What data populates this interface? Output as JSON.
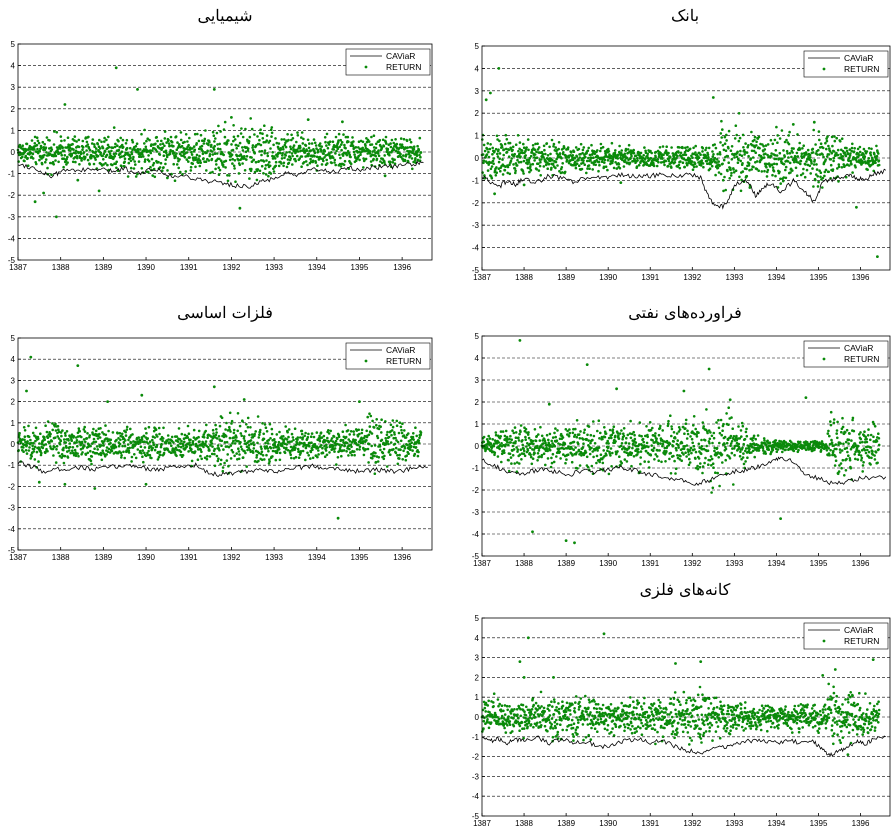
{
  "colors": {
    "return": "#0a8a0a",
    "caviar": "#000000",
    "grid": "#000000",
    "frame": "#000000"
  },
  "legend": {
    "line_label": "CAViaR",
    "points_label": "RETURN"
  },
  "chart_data": [
    {
      "id": "chem",
      "type": "scatter",
      "title": "شیمیایی",
      "x_ticks": [
        "1387",
        "1388",
        "1389",
        "1390",
        "1391",
        "1392",
        "1393",
        "1394",
        "1395",
        "1396"
      ],
      "xlim": [
        1387,
        1396.7
      ],
      "y_ticks": [
        "5",
        "4",
        "3",
        "2",
        "1",
        "0",
        "-1",
        "-2",
        "-3",
        "-4",
        "-5"
      ],
      "ylim": [
        -5,
        5
      ],
      "grid": "dashed horizontal",
      "legend_position": "top-right",
      "series": [
        {
          "name": "CAViaR",
          "type": "line",
          "x": [
            1387.0,
            1387.3,
            1387.6,
            1387.8,
            1388.0,
            1388.3,
            1388.6,
            1388.9,
            1389.2,
            1389.5,
            1389.8,
            1390.0,
            1390.3,
            1390.6,
            1390.9,
            1391.2,
            1391.5,
            1391.8,
            1392.1,
            1392.4,
            1392.7,
            1393.0,
            1393.3,
            1393.6,
            1393.9,
            1394.2,
            1394.5,
            1394.8,
            1395.1,
            1395.4,
            1395.7,
            1396.0,
            1396.3,
            1396.5
          ],
          "y": [
            -0.55,
            -0.7,
            -0.95,
            -1.15,
            -0.9,
            -0.8,
            -0.85,
            -0.8,
            -0.9,
            -0.75,
            -1.0,
            -0.85,
            -0.8,
            -1.15,
            -1.1,
            -1.25,
            -1.35,
            -1.45,
            -1.55,
            -1.6,
            -1.4,
            -1.2,
            -1.0,
            -1.1,
            -0.8,
            -0.85,
            -0.9,
            -0.75,
            -0.85,
            -0.7,
            -0.7,
            -0.6,
            -0.55,
            -0.5
          ]
        },
        {
          "name": "RETURN",
          "type": "scatter",
          "volatility": [
            0.35,
            0.4,
            0.5,
            0.45,
            0.45,
            0.5,
            0.55,
            0.5,
            0.55,
            0.6,
            0.65,
            0.65,
            0.6,
            0.55,
            0.7,
            0.8,
            0.8,
            0.85,
            0.8,
            0.55,
            0.5,
            0.45,
            0.45,
            0.5,
            0.5,
            0.45,
            0.45,
            0.45,
            0.4,
            0.4
          ],
          "outliers": [
            [
              1387.4,
              -2.3
            ],
            [
              1387.6,
              -1.9
            ],
            [
              1387.9,
              -3.0
            ],
            [
              1388.1,
              2.2
            ],
            [
              1388.4,
              -1.3
            ],
            [
              1388.9,
              -1.8
            ],
            [
              1389.3,
              3.9
            ],
            [
              1389.8,
              2.9
            ],
            [
              1390.5,
              -1.2
            ],
            [
              1391.6,
              2.9
            ],
            [
              1392.2,
              -2.6
            ],
            [
              1392.0,
              1.6
            ],
            [
              1393.8,
              1.5
            ],
            [
              1394.6,
              1.4
            ],
            [
              1395.6,
              -1.1
            ]
          ]
        }
      ]
    },
    {
      "id": "bank",
      "type": "scatter",
      "title": "بانک",
      "x_ticks": [
        "1387",
        "1388",
        "1389",
        "1390",
        "1391",
        "1392",
        "1393",
        "1394",
        "1395",
        "1396"
      ],
      "xlim": [
        1387,
        1396.7
      ],
      "y_ticks": [
        "5",
        "4",
        "3",
        "2",
        "1",
        "0",
        "-1",
        "-2",
        "-3",
        "-4",
        "-5"
      ],
      "ylim": [
        -5,
        5
      ],
      "grid": "dashed horizontal",
      "legend_position": "top-right",
      "series": [
        {
          "name": "CAViaR",
          "type": "line",
          "x": [
            1387.0,
            1387.2,
            1387.4,
            1387.6,
            1387.8,
            1388.0,
            1388.3,
            1388.6,
            1388.9,
            1389.2,
            1389.5,
            1389.8,
            1390.1,
            1390.4,
            1390.7,
            1391.0,
            1391.3,
            1391.6,
            1391.9,
            1392.2,
            1392.4,
            1392.6,
            1392.8,
            1393.0,
            1393.3,
            1393.5,
            1393.7,
            1393.9,
            1394.1,
            1394.4,
            1394.7,
            1394.9,
            1395.1,
            1395.4,
            1395.7,
            1395.9,
            1396.1,
            1396.3,
            1396.6
          ],
          "y": [
            -0.8,
            -1.1,
            -1.3,
            -1.0,
            -1.2,
            -0.9,
            -1.1,
            -0.8,
            -0.9,
            -1.1,
            -0.85,
            -0.9,
            -0.8,
            -0.75,
            -0.85,
            -0.8,
            -0.75,
            -0.8,
            -0.7,
            -0.9,
            -1.8,
            -2.2,
            -2.1,
            -1.2,
            -1.0,
            -1.7,
            -1.3,
            -1.1,
            -1.6,
            -1.0,
            -1.5,
            -2.0,
            -1.1,
            -0.9,
            -0.8,
            -0.9,
            -1.0,
            -0.7,
            -0.55
          ]
        },
        {
          "name": "RETURN",
          "type": "scatter",
          "volatility": [
            0.7,
            0.6,
            0.5,
            0.5,
            0.45,
            0.45,
            0.4,
            0.4,
            0.35,
            0.35,
            0.35,
            0.3,
            0.3,
            0.3,
            0.3,
            0.3,
            0.35,
            0.4,
            1.0,
            1.0,
            0.8,
            0.55,
            0.7,
            0.6,
            0.55,
            0.75,
            0.6,
            0.45,
            0.3,
            0.3
          ],
          "outliers": [
            [
              1387.1,
              2.6
            ],
            [
              1387.2,
              2.9
            ],
            [
              1387.4,
              4.0
            ],
            [
              1387.3,
              -1.6
            ],
            [
              1388.0,
              -1.2
            ],
            [
              1390.3,
              -1.1
            ],
            [
              1392.5,
              2.7
            ],
            [
              1394.4,
              1.5
            ],
            [
              1394.9,
              1.6
            ],
            [
              1395.9,
              -2.2
            ],
            [
              1396.4,
              -4.4
            ]
          ]
        }
      ]
    },
    {
      "id": "metals",
      "type": "scatter",
      "title": "فلزات اساسی",
      "x_ticks": [
        "1387",
        "1388",
        "1389",
        "1390",
        "1391",
        "1392",
        "1393",
        "1394",
        "1395",
        "1396"
      ],
      "xlim": [
        1387,
        1396.7
      ],
      "y_ticks": [
        "5",
        "4",
        "3",
        "2",
        "1",
        "0",
        "-1",
        "-2",
        "-3",
        "-4",
        "-5"
      ],
      "ylim": [
        -5,
        5
      ],
      "grid": "dashed horizontal",
      "legend_position": "top-right",
      "series": [
        {
          "name": "CAViaR",
          "type": "line",
          "x": [
            1387.0,
            1387.3,
            1387.6,
            1387.9,
            1388.2,
            1388.5,
            1388.8,
            1389.1,
            1389.4,
            1389.7,
            1390.0,
            1390.3,
            1390.6,
            1390.9,
            1391.2,
            1391.5,
            1391.8,
            1392.1,
            1392.4,
            1392.7,
            1393.0,
            1393.3,
            1393.6,
            1393.9,
            1394.2,
            1394.5,
            1394.8,
            1395.1,
            1395.4,
            1395.7,
            1396.0,
            1396.3,
            1396.6
          ],
          "y": [
            -0.9,
            -1.05,
            -1.3,
            -1.2,
            -1.15,
            -1.1,
            -1.2,
            -1.1,
            -1.05,
            -1.0,
            -1.15,
            -1.2,
            -1.1,
            -1.05,
            -1.0,
            -1.4,
            -1.45,
            -1.35,
            -1.3,
            -1.25,
            -1.3,
            -1.2,
            -1.1,
            -1.05,
            -1.1,
            -1.15,
            -1.25,
            -1.3,
            -1.2,
            -1.3,
            -1.25,
            -1.15,
            -1.1
          ]
        },
        {
          "name": "RETURN",
          "type": "scatter",
          "volatility": [
            0.5,
            0.55,
            0.6,
            0.55,
            0.5,
            0.5,
            0.5,
            0.5,
            0.5,
            0.55,
            0.5,
            0.45,
            0.5,
            0.5,
            0.5,
            0.8,
            0.75,
            0.7,
            0.6,
            0.5,
            0.5,
            0.45,
            0.45,
            0.45,
            0.5,
            0.5,
            0.85,
            0.8,
            0.6,
            0.5
          ],
          "outliers": [
            [
              1387.3,
              4.1
            ],
            [
              1387.2,
              2.5
            ],
            [
              1387.5,
              -1.8
            ],
            [
              1388.1,
              -1.9
            ],
            [
              1388.4,
              3.7
            ],
            [
              1388.8,
              -2.1
            ],
            [
              1389.1,
              2.0
            ],
            [
              1389.9,
              2.3
            ],
            [
              1390.0,
              -1.9
            ],
            [
              1391.6,
              2.7
            ],
            [
              1392.3,
              2.1
            ],
            [
              1394.5,
              -3.5
            ],
            [
              1395.0,
              2.0
            ]
          ]
        }
      ]
    },
    {
      "id": "oil",
      "type": "scatter",
      "title": "فراورده‌های نفتی",
      "x_ticks": [
        "1387",
        "1388",
        "1389",
        "1390",
        "1391",
        "1392",
        "1393",
        "1394",
        "1395",
        "1396"
      ],
      "xlim": [
        1387,
        1396.7
      ],
      "y_ticks": [
        "5",
        "4",
        "3",
        "2",
        "1",
        "0",
        "-1",
        "-2",
        "-3",
        "-4",
        "-5"
      ],
      "ylim": [
        -5,
        5
      ],
      "grid": "dashed horizontal",
      "legend_position": "top-right",
      "series": [
        {
          "name": "CAViaR",
          "type": "line",
          "x": [
            1387.0,
            1387.3,
            1387.6,
            1387.9,
            1388.2,
            1388.5,
            1388.8,
            1389.1,
            1389.4,
            1389.7,
            1390.0,
            1390.3,
            1390.6,
            1390.9,
            1391.2,
            1391.5,
            1391.8,
            1392.1,
            1392.4,
            1392.7,
            1393.0,
            1393.3,
            1393.6,
            1393.9,
            1394.1,
            1394.4,
            1394.7,
            1395.0,
            1395.3,
            1395.6,
            1395.9,
            1396.2,
            1396.6
          ],
          "y": [
            -0.6,
            -0.9,
            -1.2,
            -1.3,
            -1.15,
            -1.05,
            -1.2,
            -1.3,
            -1.1,
            -1.2,
            -1.05,
            -1.0,
            -1.1,
            -1.25,
            -1.35,
            -1.5,
            -1.6,
            -1.75,
            -1.55,
            -1.3,
            -1.15,
            -1.1,
            -0.9,
            -0.65,
            -0.55,
            -0.7,
            -1.3,
            -1.45,
            -1.7,
            -1.65,
            -1.5,
            -1.45,
            -1.4
          ]
        },
        {
          "name": "RETURN",
          "type": "scatter",
          "volatility": [
            0.25,
            0.5,
            0.6,
            0.55,
            0.55,
            0.5,
            0.5,
            0.65,
            0.7,
            0.6,
            0.55,
            0.6,
            0.6,
            0.65,
            0.7,
            0.8,
            0.9,
            0.95,
            0.8,
            0.6,
            0.3,
            0.2,
            0.15,
            0.15,
            0.15,
            0.15,
            0.75,
            0.85,
            0.7,
            0.6
          ],
          "outliers": [
            [
              1387.9,
              4.8
            ],
            [
              1388.2,
              -3.9
            ],
            [
              1389.0,
              -4.3
            ],
            [
              1389.2,
              -4.4
            ],
            [
              1389.5,
              3.7
            ],
            [
              1390.2,
              2.6
            ],
            [
              1391.8,
              2.5
            ],
            [
              1392.4,
              3.5
            ],
            [
              1392.9,
              2.1
            ],
            [
              1394.1,
              -3.3
            ],
            [
              1394.7,
              2.2
            ],
            [
              1388.6,
              1.9
            ]
          ]
        }
      ]
    },
    {
      "id": "ore",
      "type": "scatter",
      "title": "کانه‌های فلزی",
      "x_ticks": [
        "1387",
        "1388",
        "1389",
        "1390",
        "1391",
        "1392",
        "1393",
        "1394",
        "1395",
        "1396"
      ],
      "xlim": [
        1387,
        1396.7
      ],
      "y_ticks": [
        "5",
        "4",
        "3",
        "2",
        "1",
        "0",
        "-1",
        "-2",
        "-3",
        "-4",
        "-5"
      ],
      "ylim": [
        -5,
        5
      ],
      "grid": "dashed horizontal",
      "legend_position": "top-right",
      "series": [
        {
          "name": "CAViaR",
          "type": "line",
          "x": [
            1387.0,
            1387.2,
            1387.4,
            1387.6,
            1387.8,
            1388.0,
            1388.3,
            1388.6,
            1388.9,
            1389.2,
            1389.5,
            1389.8,
            1390.1,
            1390.4,
            1390.7,
            1391.0,
            1391.3,
            1391.6,
            1391.9,
            1392.2,
            1392.5,
            1392.8,
            1393.1,
            1393.4,
            1393.7,
            1394.0,
            1394.3,
            1394.6,
            1394.9,
            1395.1,
            1395.3,
            1395.5,
            1395.7,
            1395.9,
            1396.1,
            1396.3,
            1396.6
          ],
          "y": [
            -1.0,
            -1.2,
            -1.1,
            -1.3,
            -1.15,
            -1.2,
            -1.0,
            -1.35,
            -1.1,
            -1.3,
            -1.25,
            -1.5,
            -1.4,
            -1.2,
            -1.1,
            -1.3,
            -1.2,
            -1.5,
            -1.7,
            -1.8,
            -1.6,
            -1.5,
            -1.3,
            -1.2,
            -1.25,
            -1.3,
            -1.2,
            -1.3,
            -1.25,
            -1.7,
            -1.9,
            -1.7,
            -1.5,
            -1.2,
            -1.4,
            -1.15,
            -1.0
          ]
        },
        {
          "name": "RETURN",
          "type": "scatter",
          "volatility": [
            0.6,
            0.55,
            0.5,
            0.55,
            0.6,
            0.65,
            0.6,
            0.6,
            0.55,
            0.5,
            0.55,
            0.6,
            0.6,
            0.7,
            0.75,
            0.8,
            0.8,
            0.7,
            0.55,
            0.45,
            0.4,
            0.35,
            0.35,
            0.4,
            0.4,
            0.45,
            0.9,
            0.85,
            0.7,
            0.55
          ],
          "outliers": [
            [
              1387.9,
              2.8
            ],
            [
              1388.0,
              2.0
            ],
            [
              1388.1,
              4.0
            ],
            [
              1388.7,
              2.0
            ],
            [
              1389.9,
              4.2
            ],
            [
              1391.6,
              2.7
            ],
            [
              1392.2,
              2.8
            ],
            [
              1395.1,
              2.1
            ],
            [
              1395.4,
              2.4
            ],
            [
              1395.7,
              -1.9
            ],
            [
              1396.3,
              2.9
            ]
          ]
        }
      ]
    }
  ]
}
